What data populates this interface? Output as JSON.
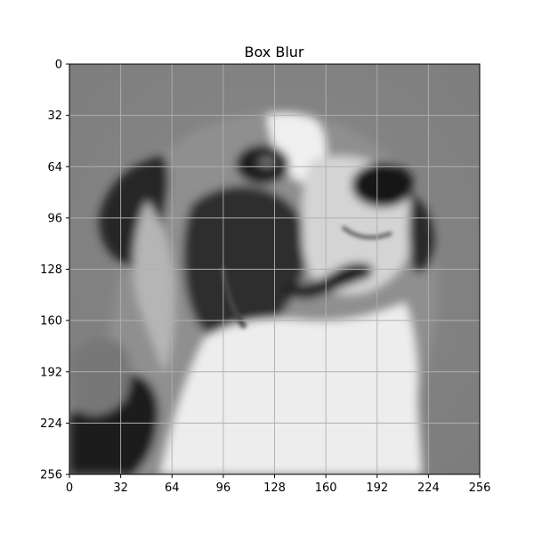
{
  "figure": {
    "title": "Box Blur",
    "colormap": "gray",
    "grid": true,
    "background_color": "#808080",
    "grid_color": "#b0b0b0",
    "frame_color": "#000000"
  },
  "axes": {
    "x": {
      "range": [
        0,
        256
      ],
      "ticks": [
        0,
        32,
        64,
        96,
        128,
        160,
        192,
        224,
        256
      ],
      "tick_labels": [
        "0",
        "32",
        "64",
        "96",
        "128",
        "160",
        "192",
        "224",
        "256"
      ]
    },
    "y": {
      "range": [
        0,
        256
      ],
      "inverted": true,
      "ticks": [
        0,
        32,
        64,
        96,
        128,
        160,
        192,
        224,
        256
      ],
      "tick_labels": [
        "0",
        "32",
        "64",
        "96",
        "128",
        "160",
        "192",
        "224",
        "256"
      ]
    }
  },
  "image": {
    "subject": "grayscale photo of a dog looking upward, box-blurred",
    "icon": "dog-photo"
  }
}
